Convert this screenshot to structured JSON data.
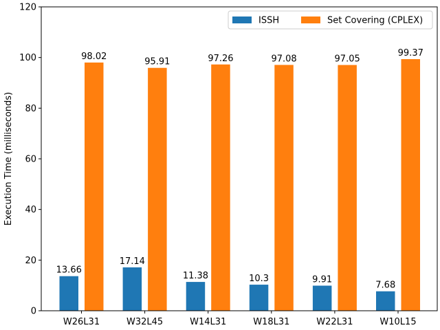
{
  "chart_data": {
    "type": "bar",
    "categories": [
      "W26L31",
      "W32L45",
      "W14L31",
      "W18L31",
      "W22L31",
      "W10L15"
    ],
    "series": [
      {
        "name": "ISSH",
        "values": [
          13.66,
          17.14,
          11.38,
          10.3,
          9.91,
          7.68
        ],
        "labels": [
          "13.66",
          "17.14",
          "11.38",
          "10.3",
          "9.91",
          "7.68"
        ],
        "color": "#1f77b4"
      },
      {
        "name": "Set Covering (CPLEX)",
        "values": [
          98.02,
          95.91,
          97.26,
          97.08,
          97.05,
          99.37
        ],
        "labels": [
          "98.02",
          "95.91",
          "97.26",
          "97.08",
          "97.05",
          "99.37"
        ],
        "color": "#ff7f0e"
      }
    ],
    "xlabel": "",
    "ylabel": "Execution Time (milliseconds)",
    "ylim": [
      0,
      120
    ],
    "yticks": [
      0,
      20,
      40,
      60,
      80,
      100,
      120
    ],
    "grid": false,
    "legend_position": "top-right",
    "legend_columns": 2
  }
}
